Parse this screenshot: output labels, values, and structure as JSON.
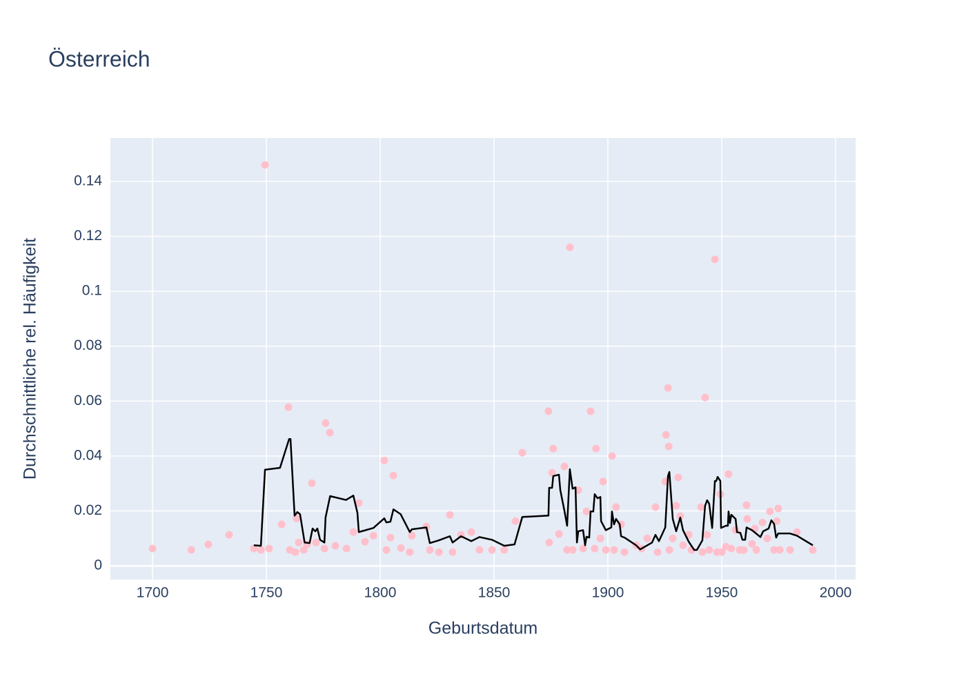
{
  "chart_data": {
    "type": "scatter",
    "title": "Österreich",
    "x_label": "Geburtsdatum",
    "y_label": "Durchschnittliche rel. Häufigkeit",
    "xlim": [
      1681.5,
      2008.8
    ],
    "ylim": [
      -0.005,
      0.1558
    ],
    "xticks": [
      1700,
      1750,
      1800,
      1850,
      1900,
      1950,
      2000
    ],
    "yticks": [
      0,
      0.02,
      0.04,
      0.06,
      0.08,
      0.1,
      0.12,
      0.14
    ],
    "grid": true,
    "series": [
      {
        "mode": "markers",
        "color": "#ffc0cb",
        "x": [
          1700,
          1717,
          1724.5,
          1733.6,
          1744.5,
          1747.6,
          1749.4,
          1751.2,
          1756.7,
          1759.7,
          1760.3,
          1762.7,
          1763.3,
          1764.2,
          1766.4,
          1767.9,
          1770,
          1771.8,
          1775.5,
          1776,
          1777.9,
          1780.3,
          1785.2,
          1788.2,
          1790.6,
          1793.3,
          1797,
          1801.8,
          1802.7,
          1804.5,
          1805.8,
          1809.1,
          1813,
          1813.9,
          1820.3,
          1821.8,
          1825.8,
          1830.6,
          1831.8,
          1835.5,
          1840,
          1843.6,
          1849.1,
          1854.5,
          1859.4,
          1862.4,
          1873.9,
          1874.2,
          1875.5,
          1876,
          1878.5,
          1880.9,
          1882.1,
          1883.3,
          1884.5,
          1887,
          1889.1,
          1890.6,
          1892.4,
          1894.2,
          1894.8,
          1896.7,
          1897.9,
          1899.1,
          1901.8,
          1902.7,
          1903.6,
          1905.8,
          1907.3,
          1912.4,
          1914.8,
          1917.3,
          1920.9,
          1921.8,
          1925.2,
          1925.5,
          1926.4,
          1926.7,
          1927,
          1928.5,
          1930,
          1930.9,
          1931.8,
          1933,
          1935.5,
          1936.7,
          1940.9,
          1941.5,
          1942.7,
          1943.6,
          1944.5,
          1947,
          1947.9,
          1949.4,
          1950,
          1951.8,
          1953,
          1954.2,
          1956.1,
          1957.9,
          1959.7,
          1960.9,
          1961.2,
          1963.3,
          1964.5,
          1965.2,
          1967.9,
          1970,
          1971.2,
          1973,
          1974.2,
          1974.8,
          1975.5,
          1980,
          1983,
          1990
        ],
        "values": [
          0.0063,
          0.0058,
          0.0078,
          0.0113,
          0.0063,
          0.0058,
          0.146,
          0.0063,
          0.0151,
          0.0578,
          0.0058,
          0.005,
          0.0173,
          0.0085,
          0.0058,
          0.0078,
          0.0301,
          0.0085,
          0.0063,
          0.052,
          0.0485,
          0.0073,
          0.0063,
          0.0123,
          0.0229,
          0.0088,
          0.011,
          0.0384,
          0.0058,
          0.0103,
          0.0329,
          0.0065,
          0.005,
          0.011,
          0.0143,
          0.0058,
          0.005,
          0.0186,
          0.005,
          0.0113,
          0.0123,
          0.0058,
          0.0058,
          0.0058,
          0.0163,
          0.0412,
          0.0563,
          0.0085,
          0.0339,
          0.0427,
          0.0116,
          0.0362,
          0.0058,
          0.116,
          0.0058,
          0.0276,
          0.0063,
          0.0198,
          0.0563,
          0.0063,
          0.0427,
          0.01,
          0.0307,
          0.0058,
          0.04,
          0.0058,
          0.0214,
          0.0151,
          0.005,
          0.0075,
          0.0063,
          0.01,
          0.0214,
          0.005,
          0.0307,
          0.0477,
          0.0648,
          0.0435,
          0.0058,
          0.01,
          0.0219,
          0.0322,
          0.0181,
          0.0075,
          0.0113,
          0.0058,
          0.0214,
          0.005,
          0.0613,
          0.0113,
          0.0058,
          0.1116,
          0.005,
          0.0261,
          0.005,
          0.007,
          0.0334,
          0.0063,
          0.0131,
          0.0058,
          0.0058,
          0.0221,
          0.0171,
          0.008,
          0.0136,
          0.0058,
          0.0158,
          0.01,
          0.0198,
          0.0058,
          0.0163,
          0.0209,
          0.0058,
          0.0058,
          0.0123,
          0.0058
        ]
      },
      {
        "mode": "lines",
        "color": "#000000",
        "x": [
          1744.5,
          1747.6,
          1749.4,
          1756,
          1760,
          1760.6,
          1762.4,
          1763.6,
          1764.8,
          1766.8,
          1769,
          1770.3,
          1771.5,
          1772.4,
          1773.6,
          1775.5,
          1776,
          1778,
          1785,
          1788.2,
          1790,
          1790.6,
          1797,
          1801.8,
          1802.7,
          1804.5,
          1805.8,
          1809,
          1813,
          1813.9,
          1820.3,
          1821.8,
          1825.8,
          1830.6,
          1831.8,
          1835.5,
          1840,
          1843.6,
          1849.1,
          1854.5,
          1859,
          1862.4,
          1873.9,
          1874.2,
          1875.5,
          1876,
          1878.5,
          1879.1,
          1880.9,
          1882.1,
          1883.3,
          1884.5,
          1885.8,
          1886.4,
          1887,
          1889.1,
          1890,
          1890.6,
          1891.8,
          1892.4,
          1893.6,
          1894.2,
          1895.5,
          1896.7,
          1897,
          1899.1,
          1901.5,
          1901.8,
          1902.7,
          1903.6,
          1905.2,
          1905.8,
          1907.3,
          1912.4,
          1914.2,
          1919.4,
          1920.9,
          1922.4,
          1924,
          1925.2,
          1926.4,
          1927,
          1928.5,
          1930,
          1931.8,
          1933,
          1935.5,
          1937.9,
          1939.1,
          1941.5,
          1942.7,
          1943.6,
          1944.5,
          1945.8,
          1947,
          1947.6,
          1948.2,
          1949.4,
          1949.7,
          1951.8,
          1952.7,
          1953,
          1953.6,
          1954.2,
          1956.1,
          1956.7,
          1958.2,
          1959.1,
          1960.3,
          1960.9,
          1963.3,
          1967,
          1968.2,
          1970.6,
          1971.8,
          1973,
          1973.9,
          1974.8,
          1980,
          1983,
          1990
        ],
        "values": [
          0.0075,
          0.0073,
          0.035,
          0.0357,
          0.0462,
          0.0462,
          0.0183,
          0.0196,
          0.0188,
          0.0085,
          0.0083,
          0.0136,
          0.0126,
          0.0136,
          0.0095,
          0.0085,
          0.0176,
          0.0254,
          0.024,
          0.0256,
          0.0193,
          0.0123,
          0.0138,
          0.0173,
          0.0158,
          0.0161,
          0.0206,
          0.0188,
          0.0123,
          0.0133,
          0.014,
          0.0083,
          0.0093,
          0.0108,
          0.0085,
          0.0108,
          0.009,
          0.0105,
          0.0095,
          0.0073,
          0.0078,
          0.0178,
          0.0183,
          0.0284,
          0.0284,
          0.0327,
          0.0332,
          0.0276,
          0.0201,
          0.0146,
          0.0352,
          0.0281,
          0.0286,
          0.0085,
          0.0126,
          0.013,
          0.0075,
          0.0106,
          0.0103,
          0.0198,
          0.0198,
          0.0261,
          0.0246,
          0.0251,
          0.0163,
          0.013,
          0.014,
          0.0198,
          0.0151,
          0.0171,
          0.0151,
          0.0108,
          0.0103,
          0.0075,
          0.006,
          0.0085,
          0.0113,
          0.009,
          0.0118,
          0.014,
          0.0327,
          0.0342,
          0.0171,
          0.0126,
          0.0176,
          0.013,
          0.0088,
          0.0058,
          0.0058,
          0.0093,
          0.0219,
          0.0239,
          0.0226,
          0.0138,
          0.0309,
          0.0309,
          0.0324,
          0.0309,
          0.0138,
          0.0146,
          0.0146,
          0.0198,
          0.0156,
          0.0186,
          0.0171,
          0.0123,
          0.012,
          0.0095,
          0.0095,
          0.014,
          0.013,
          0.0105,
          0.0126,
          0.0136,
          0.0166,
          0.0153,
          0.0103,
          0.0118,
          0.0118,
          0.011,
          0.0075
        ]
      }
    ]
  }
}
